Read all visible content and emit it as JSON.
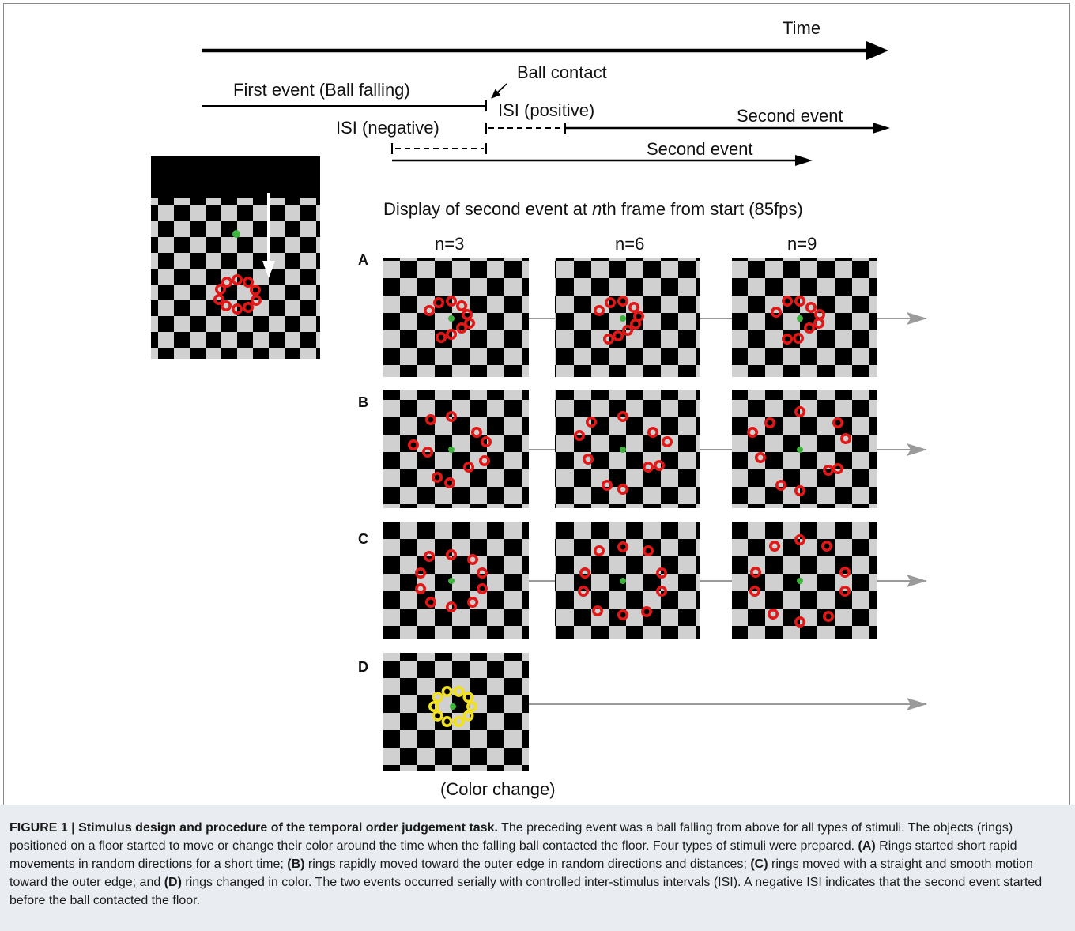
{
  "timeline": {
    "time_label": "Time",
    "first_event_label": "First event (Ball falling)",
    "ball_contact_label": "Ball contact",
    "isi_positive_label": "ISI (positive)",
    "isi_negative_label": "ISI (negative)",
    "second_event_label_upper": "Second event",
    "second_event_label_lower": "Second event"
  },
  "display": {
    "heading_prefix": "Display of second event at ",
    "heading_italic": "n",
    "heading_suffix": "th frame from start (85fps)",
    "frame_labels": [
      "n=3",
      "n=6",
      "n=9"
    ]
  },
  "panels": {
    "letters": [
      "A",
      "B",
      "C",
      "D"
    ],
    "color_change_label": "(Color change)"
  },
  "colors": {
    "ring_red": "#e01818",
    "ring_yellow": "#f0e020",
    "ball_green": "#3cb43c",
    "arrow_gray": "#9a9a9a",
    "checker_light": "#d0d0d0",
    "checker_dark": "#000000",
    "caption_bg": "#e9edf1"
  },
  "caption": {
    "figure_label": "FIGURE 1 | Stimulus design and procedure of the temporal order judgement task.",
    "intro": " The preceding event was a ball falling from above for all types of stimuli. The objects (rings) positioned on a floor started to move or change their color around the time when the falling ball contacted the floor. Four types of stimuli were prepared. ",
    "a_tag": "(A)",
    "a_text": " Rings started short rapid movements in random directions for a short time; ",
    "b_tag": "(B)",
    "b_text": " rings rapidly moved toward the outer edge in random directions and distances; ",
    "c_tag": "(C)",
    "c_text": " rings moved with a straight and smooth motion toward the outer edge; and ",
    "d_tag": "(D)",
    "d_text": " rings changed in color. The two events occurred serially with controlled inter-stimulus intervals (ISI). A negative ISI indicates that the second event started before the ball contacted the floor."
  }
}
